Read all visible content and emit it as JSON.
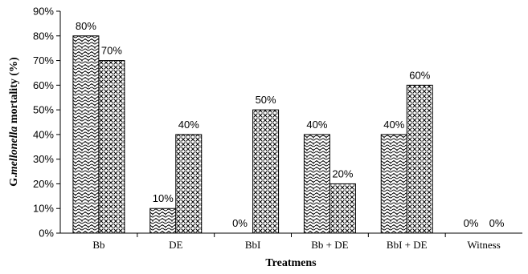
{
  "chart_data": {
    "type": "bar",
    "categories": [
      "Bb",
      "DE",
      "BbI",
      "Bb + DE",
      "BbI + DE",
      "Witness"
    ],
    "series": [
      {
        "values": [
          80,
          10,
          0,
          40,
          40,
          0
        ],
        "pattern": "wave-dots"
      },
      {
        "values": [
          70,
          40,
          50,
          20,
          60,
          0
        ],
        "pattern": "crosshatch"
      }
    ],
    "data_labels": [
      [
        "80%",
        "10%",
        "0%",
        "40%",
        "40%",
        "0%"
      ],
      [
        "70%",
        "40%",
        "50%",
        "20%",
        "60%",
        "0%"
      ]
    ],
    "yticks": [
      "0%",
      "10%",
      "20%",
      "30%",
      "40%",
      "50%",
      "60%",
      "70%",
      "80%",
      "90%"
    ],
    "ylim": [
      0,
      90
    ],
    "ylabel_prefix": "G.",
    "ylabel_italic": "mellonella",
    "ylabel_suffix": " mortality (%)",
    "xlabel": "Treatmens",
    "grid": false,
    "legend": "none"
  }
}
